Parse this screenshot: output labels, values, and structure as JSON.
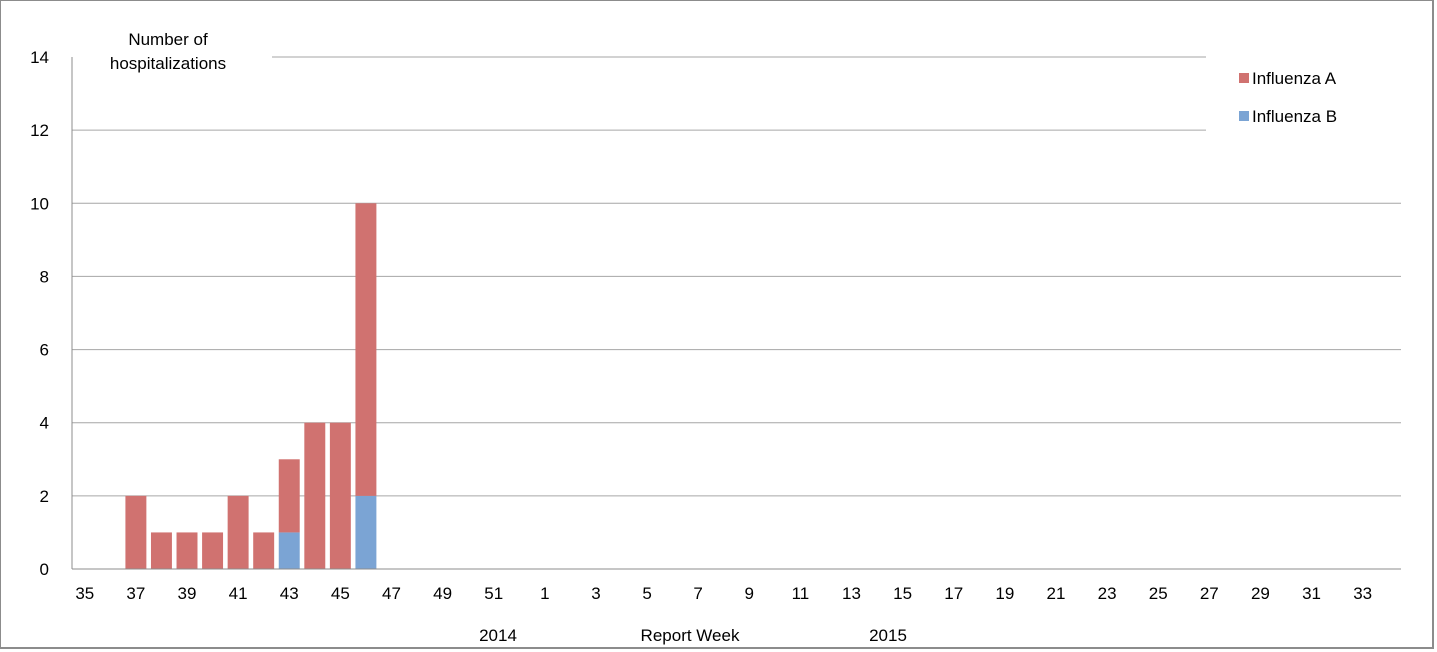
{
  "chart_data": {
    "type": "bar",
    "stacked": true,
    "categories": [
      "35",
      "36",
      "37",
      "38",
      "39",
      "40",
      "41",
      "42",
      "43",
      "44",
      "45",
      "46",
      "47",
      "48",
      "49",
      "50",
      "51",
      "52",
      "1",
      "2",
      "3",
      "4",
      "5",
      "6",
      "7",
      "8",
      "9",
      "10",
      "11",
      "12",
      "13",
      "14",
      "15",
      "16",
      "17",
      "18",
      "19",
      "20",
      "21",
      "22",
      "23",
      "24",
      "25",
      "26",
      "27",
      "28",
      "29",
      "30",
      "31",
      "32",
      "33",
      "34"
    ],
    "tick_labels": [
      "35",
      "37",
      "39",
      "41",
      "43",
      "45",
      "47",
      "49",
      "51",
      "1",
      "3",
      "5",
      "7",
      "9",
      "11",
      "13",
      "15",
      "17",
      "19",
      "21",
      "23",
      "25",
      "27",
      "29",
      "31",
      "33"
    ],
    "series": [
      {
        "name": "Influenza B",
        "color": "#7ba4d4",
        "values": [
          0,
          0,
          0,
          0,
          0,
          0,
          0,
          0,
          1,
          0,
          0,
          2,
          0,
          0,
          0,
          0,
          0,
          0,
          0,
          0,
          0,
          0,
          0,
          0,
          0,
          0,
          0,
          0,
          0,
          0,
          0,
          0,
          0,
          0,
          0,
          0,
          0,
          0,
          0,
          0,
          0,
          0,
          0,
          0,
          0,
          0,
          0,
          0,
          0,
          0,
          0,
          0
        ]
      },
      {
        "name": "Influenza A",
        "color": "#d07270",
        "values": [
          0,
          0,
          2,
          1,
          1,
          1,
          2,
          1,
          2,
          4,
          4,
          8,
          0,
          0,
          0,
          0,
          0,
          0,
          0,
          0,
          0,
          0,
          0,
          0,
          0,
          0,
          0,
          0,
          0,
          0,
          0,
          0,
          0,
          0,
          0,
          0,
          0,
          0,
          0,
          0,
          0,
          0,
          0,
          0,
          0,
          0,
          0,
          0,
          0,
          0,
          0,
          0
        ]
      }
    ],
    "legend_order": [
      "Influenza A",
      "Influenza B"
    ],
    "ylabel_lines": [
      "Number of",
      "hospitalizations"
    ],
    "xlabel": "Report Week",
    "year_labels": [
      "2014",
      "2015"
    ],
    "yticks": [
      "0",
      "2",
      "4",
      "6",
      "8",
      "10",
      "12",
      "14"
    ],
    "ylim": [
      0,
      14
    ],
    "grid": true,
    "legend_position": "top-right"
  }
}
